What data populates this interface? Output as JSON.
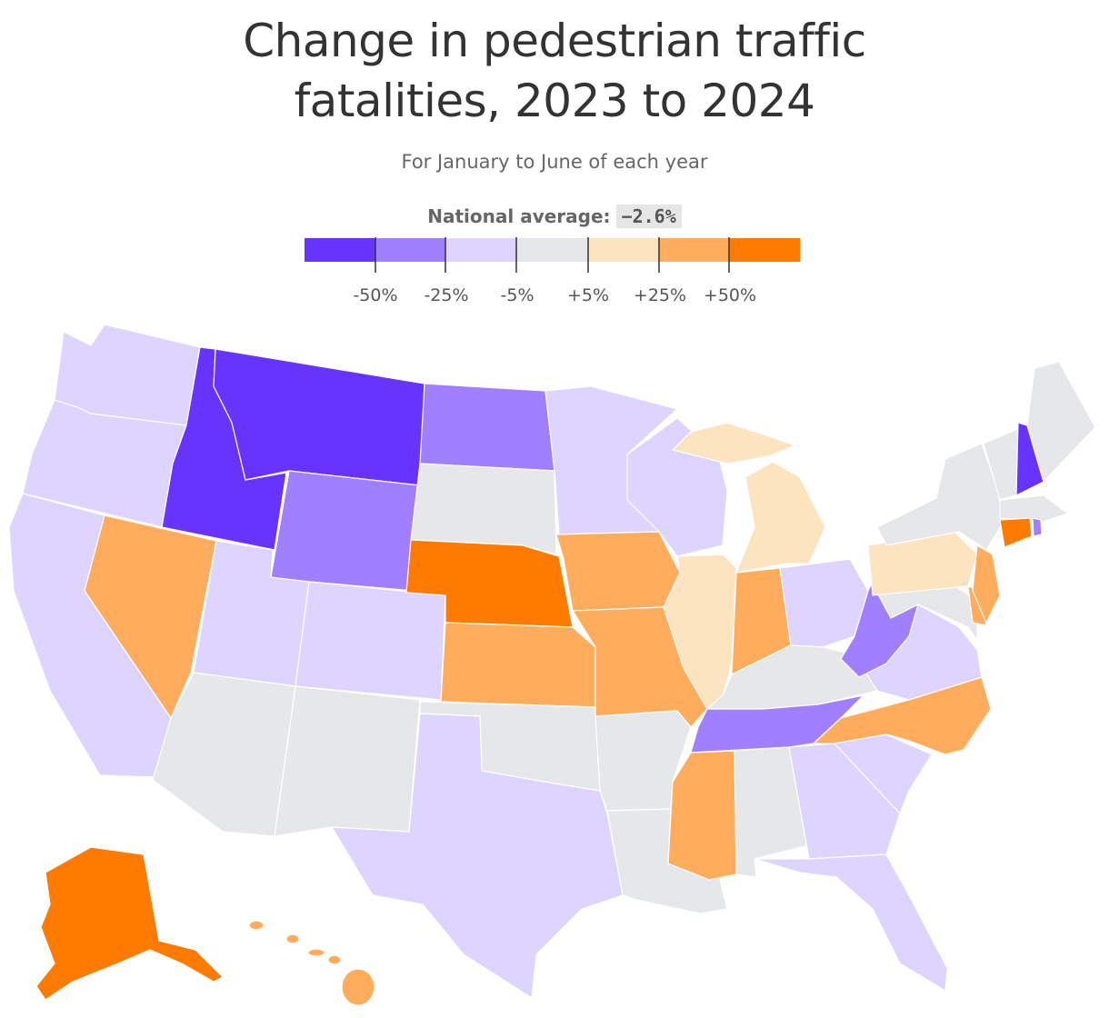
{
  "title_line1": "Change in pedestrian traffic",
  "title_line2": "fatalities, 2023 to 2024",
  "subtitle": "For January to June of each year",
  "national_average": {
    "label": "National average:",
    "value": "−2.6%"
  },
  "legend": {
    "colors": [
      "#6633ff",
      "#a080ff",
      "#ddd4ff",
      "#e6e7e9",
      "#fde4c1",
      "#ffad5c",
      "#ff7b00"
    ],
    "labels": [
      "-50%",
      "-25%",
      "-5%",
      "+5%",
      "+25%",
      "+50%"
    ]
  },
  "map": {
    "color_key": [
      "strong-decrease",
      "decrease",
      "slight-decrease",
      "little-change",
      "slight-increase",
      "increase",
      "strong-increase"
    ],
    "states": [
      {
        "name": "washington",
        "bin": 2
      },
      {
        "name": "oregon",
        "bin": 2
      },
      {
        "name": "california",
        "bin": 2
      },
      {
        "name": "idaho",
        "bin": 0
      },
      {
        "name": "montana",
        "bin": 0
      },
      {
        "name": "nevada",
        "bin": 5
      },
      {
        "name": "utah",
        "bin": 2
      },
      {
        "name": "wyoming",
        "bin": 1
      },
      {
        "name": "colorado",
        "bin": 2
      },
      {
        "name": "arizona",
        "bin": 3
      },
      {
        "name": "new-mexico",
        "bin": 3
      },
      {
        "name": "north-dakota",
        "bin": 1
      },
      {
        "name": "south-dakota",
        "bin": 3
      },
      {
        "name": "nebraska",
        "bin": 6
      },
      {
        "name": "kansas",
        "bin": 5
      },
      {
        "name": "oklahoma",
        "bin": 3
      },
      {
        "name": "texas",
        "bin": 2
      },
      {
        "name": "minnesota",
        "bin": 2
      },
      {
        "name": "iowa",
        "bin": 5
      },
      {
        "name": "missouri",
        "bin": 5
      },
      {
        "name": "arkansas",
        "bin": 3
      },
      {
        "name": "louisiana",
        "bin": 3
      },
      {
        "name": "wisconsin",
        "bin": 2
      },
      {
        "name": "illinois",
        "bin": 4
      },
      {
        "name": "michigan",
        "bin": 4
      },
      {
        "name": "indiana",
        "bin": 5
      },
      {
        "name": "ohio",
        "bin": 2
      },
      {
        "name": "kentucky",
        "bin": 3
      },
      {
        "name": "tennessee",
        "bin": 1
      },
      {
        "name": "mississippi",
        "bin": 5
      },
      {
        "name": "alabama",
        "bin": 3
      },
      {
        "name": "georgia",
        "bin": 2
      },
      {
        "name": "florida",
        "bin": 2
      },
      {
        "name": "south-carolina",
        "bin": 2
      },
      {
        "name": "north-carolina",
        "bin": 5
      },
      {
        "name": "virginia",
        "bin": 2
      },
      {
        "name": "west-virginia",
        "bin": 1
      },
      {
        "name": "pennsylvania",
        "bin": 4
      },
      {
        "name": "new-york",
        "bin": 3
      },
      {
        "name": "new-jersey",
        "bin": 5
      },
      {
        "name": "delaware",
        "bin": 5
      },
      {
        "name": "maryland",
        "bin": 3
      },
      {
        "name": "connecticut",
        "bin": 6
      },
      {
        "name": "rhode-island",
        "bin": 1
      },
      {
        "name": "massachusetts",
        "bin": 3
      },
      {
        "name": "vermont",
        "bin": 3
      },
      {
        "name": "new-hampshire",
        "bin": 0
      },
      {
        "name": "maine",
        "bin": 3
      },
      {
        "name": "alaska",
        "bin": 6
      },
      {
        "name": "hawaii",
        "bin": 5
      }
    ]
  }
}
